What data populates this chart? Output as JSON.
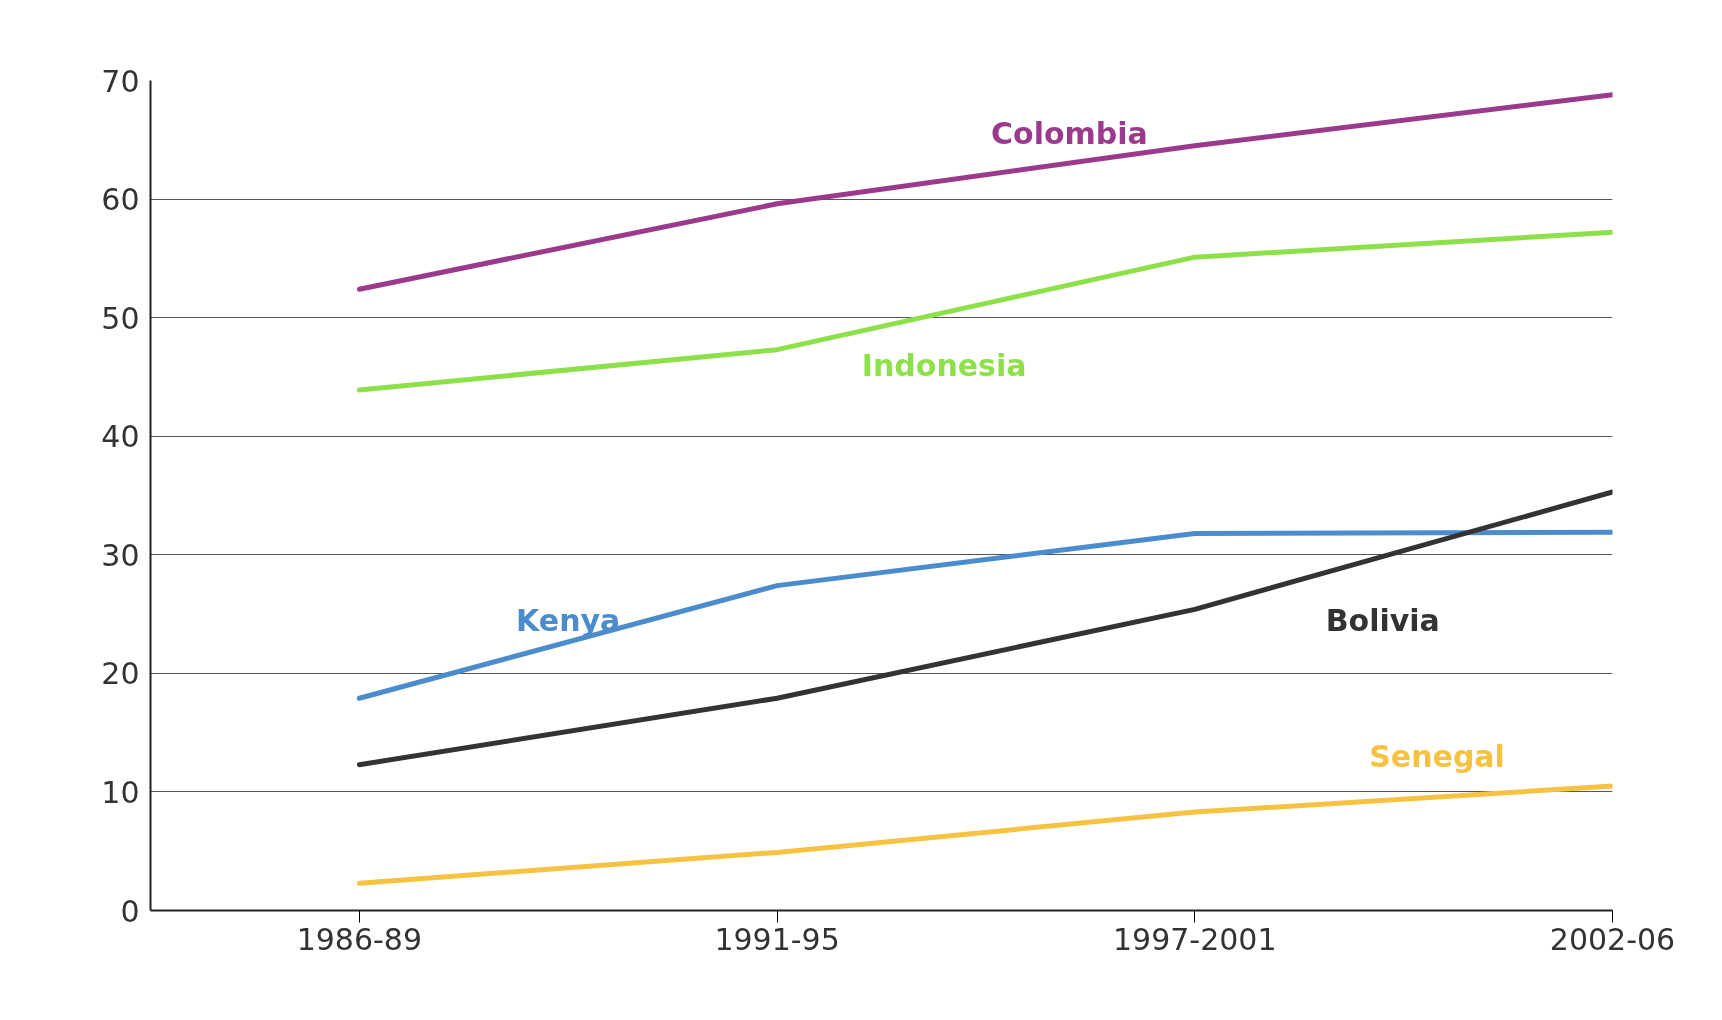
{
  "chart_data": {
    "type": "line",
    "categories": [
      "1986-89",
      "1991-95",
      "1997-2001",
      "2002-06"
    ],
    "series": [
      {
        "name": "Colombia",
        "color": "#9b3a8c",
        "values": [
          52.4,
          59.6,
          64.5,
          68.8
        ]
      },
      {
        "name": "Indonesia",
        "color": "#8ee04a",
        "values": [
          43.9,
          47.3,
          55.1,
          57.2
        ]
      },
      {
        "name": "Kenya",
        "color": "#4a8ccc",
        "values": [
          17.9,
          27.4,
          31.8,
          31.9
        ]
      },
      {
        "name": "Bolivia",
        "color": "#333333",
        "values": [
          12.3,
          17.9,
          25.4,
          35.3
        ]
      },
      {
        "name": "Senegal",
        "color": "#f5c242",
        "values": [
          2.3,
          4.9,
          8.3,
          10.5
        ]
      }
    ],
    "ylim": [
      0,
      70
    ],
    "yticks": [
      0,
      10,
      20,
      30,
      40,
      50,
      60,
      70
    ],
    "grid": "y",
    "legend": false,
    "marker": "none",
    "line_style": "solid"
  }
}
